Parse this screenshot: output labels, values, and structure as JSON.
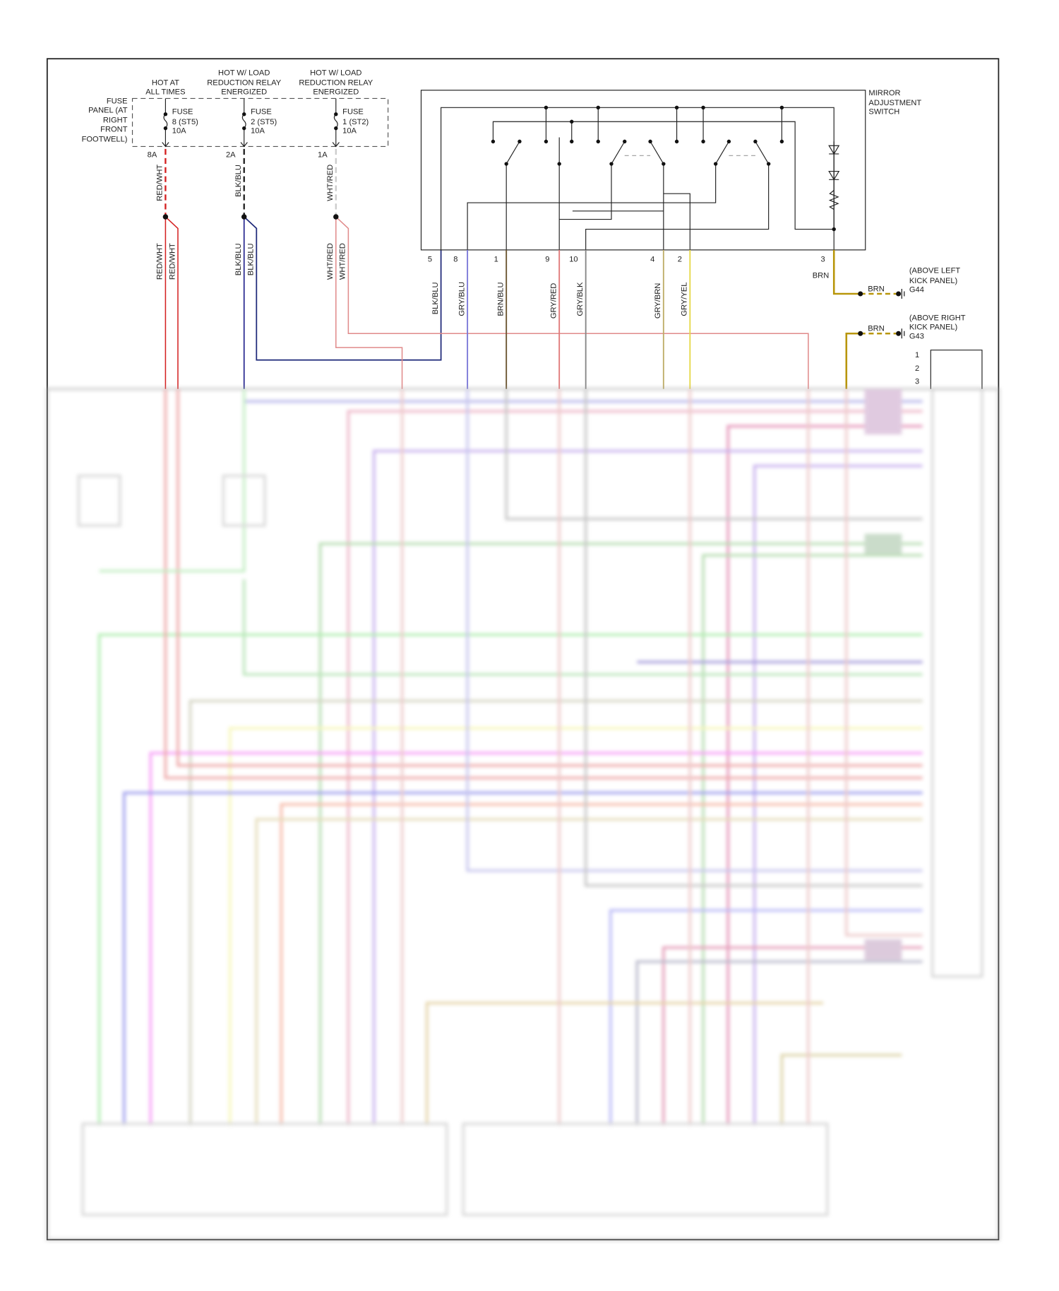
{
  "fuse_panel": {
    "label": [
      "FUSE",
      "PANEL (AT",
      "RIGHT",
      "FRONT",
      "FOOTWELL)"
    ],
    "fuses": [
      {
        "header": [
          "HOT AT",
          "ALL TIMES"
        ],
        "name": "FUSE",
        "id": "8 (ST5)",
        "rating": "10A",
        "terminal": "8A",
        "wire": "RED/WHT",
        "color": "#d42020"
      },
      {
        "header": [
          "HOT W/ LOAD",
          "REDUCTION RELAY",
          "ENERGIZED"
        ],
        "name": "FUSE",
        "id": "2 (ST5)",
        "rating": "10A",
        "terminal": "2A",
        "wire": "BLK/BLU",
        "color": "#222222"
      },
      {
        "header": [
          "HOT W/ LOAD",
          "REDUCTION RELAY",
          "ENERGIZED"
        ],
        "name": "FUSE",
        "id": "1 (ST2)",
        "rating": "10A",
        "terminal": "1A",
        "wire": "WHT/RED",
        "color": "#cccccc"
      }
    ],
    "split_wires": [
      "RED/WHT",
      "RED/WHT",
      "BLK/BLU",
      "BLK/BLU",
      "WHT/RED",
      "WHT/RED"
    ]
  },
  "mirror_switch": {
    "label": [
      "MIRROR",
      "ADJUSTMENT",
      "SWITCH"
    ],
    "pins": [
      {
        "pin": "5",
        "wire": "BLK/BLU",
        "color": "#1f2a7a"
      },
      {
        "pin": "8",
        "wire": "GRY/BLU",
        "color": "#7a78d8"
      },
      {
        "pin": "1",
        "wire": "BRN/BLU",
        "color": "#6b5530"
      },
      {
        "pin": "9",
        "wire": "GRY/RED",
        "color": "#e07a7a"
      },
      {
        "pin": "10",
        "wire": "GRY/BLK",
        "color": "#888888"
      },
      {
        "pin": "4",
        "wire": "GRY/BRN",
        "color": "#bfae6a"
      },
      {
        "pin": "2",
        "wire": "GRY/YEL",
        "color": "#e6d84a"
      },
      {
        "pin": "3",
        "wire": "BRN",
        "color": "#b8960a"
      }
    ]
  },
  "grounds": [
    {
      "wire": "BRN",
      "location": [
        "(ABOVE LEFT",
        "KICK PANEL)"
      ],
      "id": "G44"
    },
    {
      "wire": "BRN",
      "location": [
        "(ABOVE RIGHT",
        "KICK PANEL)"
      ],
      "id": "G43"
    }
  ],
  "connector_pins": [
    "1",
    "2",
    "3"
  ]
}
